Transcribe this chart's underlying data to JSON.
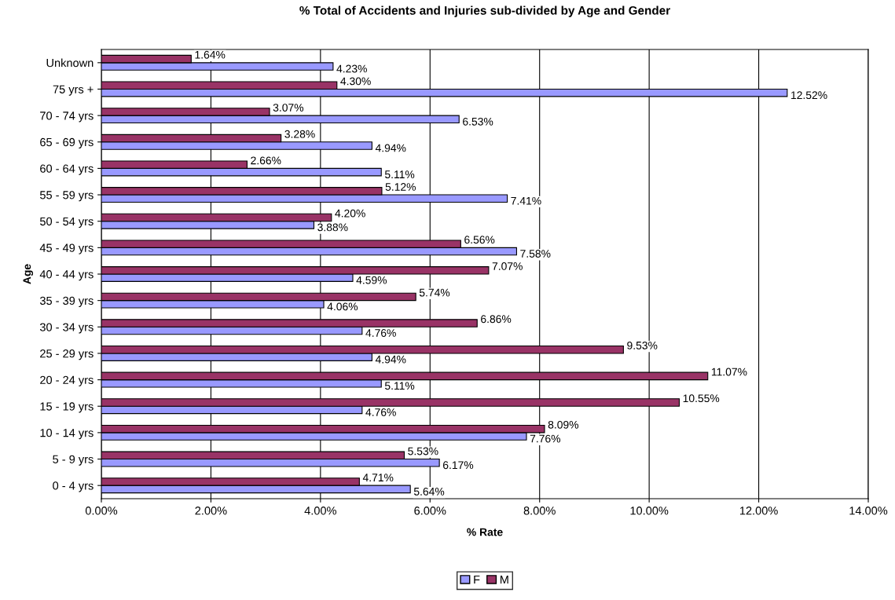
{
  "chart_data": {
    "type": "bar",
    "orientation": "horizontal",
    "title": "% Total of Accidents and Injuries sub-divided by Age and Gender",
    "xlabel": "% Rate",
    "ylabel": "Age",
    "categories": [
      "Unknown",
      "75 yrs +",
      "70 - 74 yrs",
      "65 - 69 yrs",
      "60 - 64 yrs",
      "55 - 59 yrs",
      "50 - 54 yrs",
      "45 - 49 yrs",
      "40 - 44 yrs",
      "35 - 39 yrs",
      "30 - 34 yrs",
      "25 - 29 yrs",
      "20 - 24 yrs",
      "15 - 19 yrs",
      "10 - 14 yrs",
      "5 - 9 yrs",
      "0 - 4 yrs"
    ],
    "series": [
      {
        "name": "F",
        "color": "#9999ff",
        "values": [
          4.23,
          12.52,
          6.53,
          4.94,
          5.11,
          7.41,
          3.88,
          7.58,
          4.59,
          4.06,
          4.76,
          4.94,
          5.11,
          4.76,
          7.76,
          6.17,
          5.64
        ],
        "value_labels": [
          "4.23%",
          "12.52%",
          "6.53%",
          "4.94%",
          "5.11%",
          "7.41%",
          "3.88%",
          "7.58%",
          "4.59%",
          "4.06%",
          "4.76%",
          "4.94%",
          "5.11%",
          "4.76%",
          "7.76%",
          "6.17%",
          "5.64%"
        ]
      },
      {
        "name": "M",
        "color": "#993366",
        "values": [
          1.64,
          4.3,
          3.07,
          3.28,
          2.66,
          5.12,
          4.2,
          6.56,
          7.07,
          5.74,
          6.86,
          9.53,
          11.07,
          10.55,
          8.09,
          5.53,
          4.71
        ],
        "value_labels": [
          "1.64%",
          "4.30%",
          "3.07%",
          "3.28%",
          "2.66%",
          "5.12%",
          "4.20%",
          "6.56%",
          "7.07%",
          "5.74%",
          "6.86%",
          "9.53%",
          "11.07%",
          "10.55%",
          "8.09%",
          "5.53%",
          "4.71%"
        ]
      }
    ],
    "xlim": [
      0,
      14
    ],
    "xticks": [
      {
        "value": 0,
        "label": "0.00%"
      },
      {
        "value": 2,
        "label": "2.00%"
      },
      {
        "value": 4,
        "label": "4.00%"
      },
      {
        "value": 6,
        "label": "6.00%"
      },
      {
        "value": 8,
        "label": "8.00%"
      },
      {
        "value": 10,
        "label": "10.00%"
      },
      {
        "value": 12,
        "label": "12.00%"
      },
      {
        "value": 14,
        "label": "14.00%"
      }
    ],
    "grid": "x",
    "legend": "bottom"
  }
}
